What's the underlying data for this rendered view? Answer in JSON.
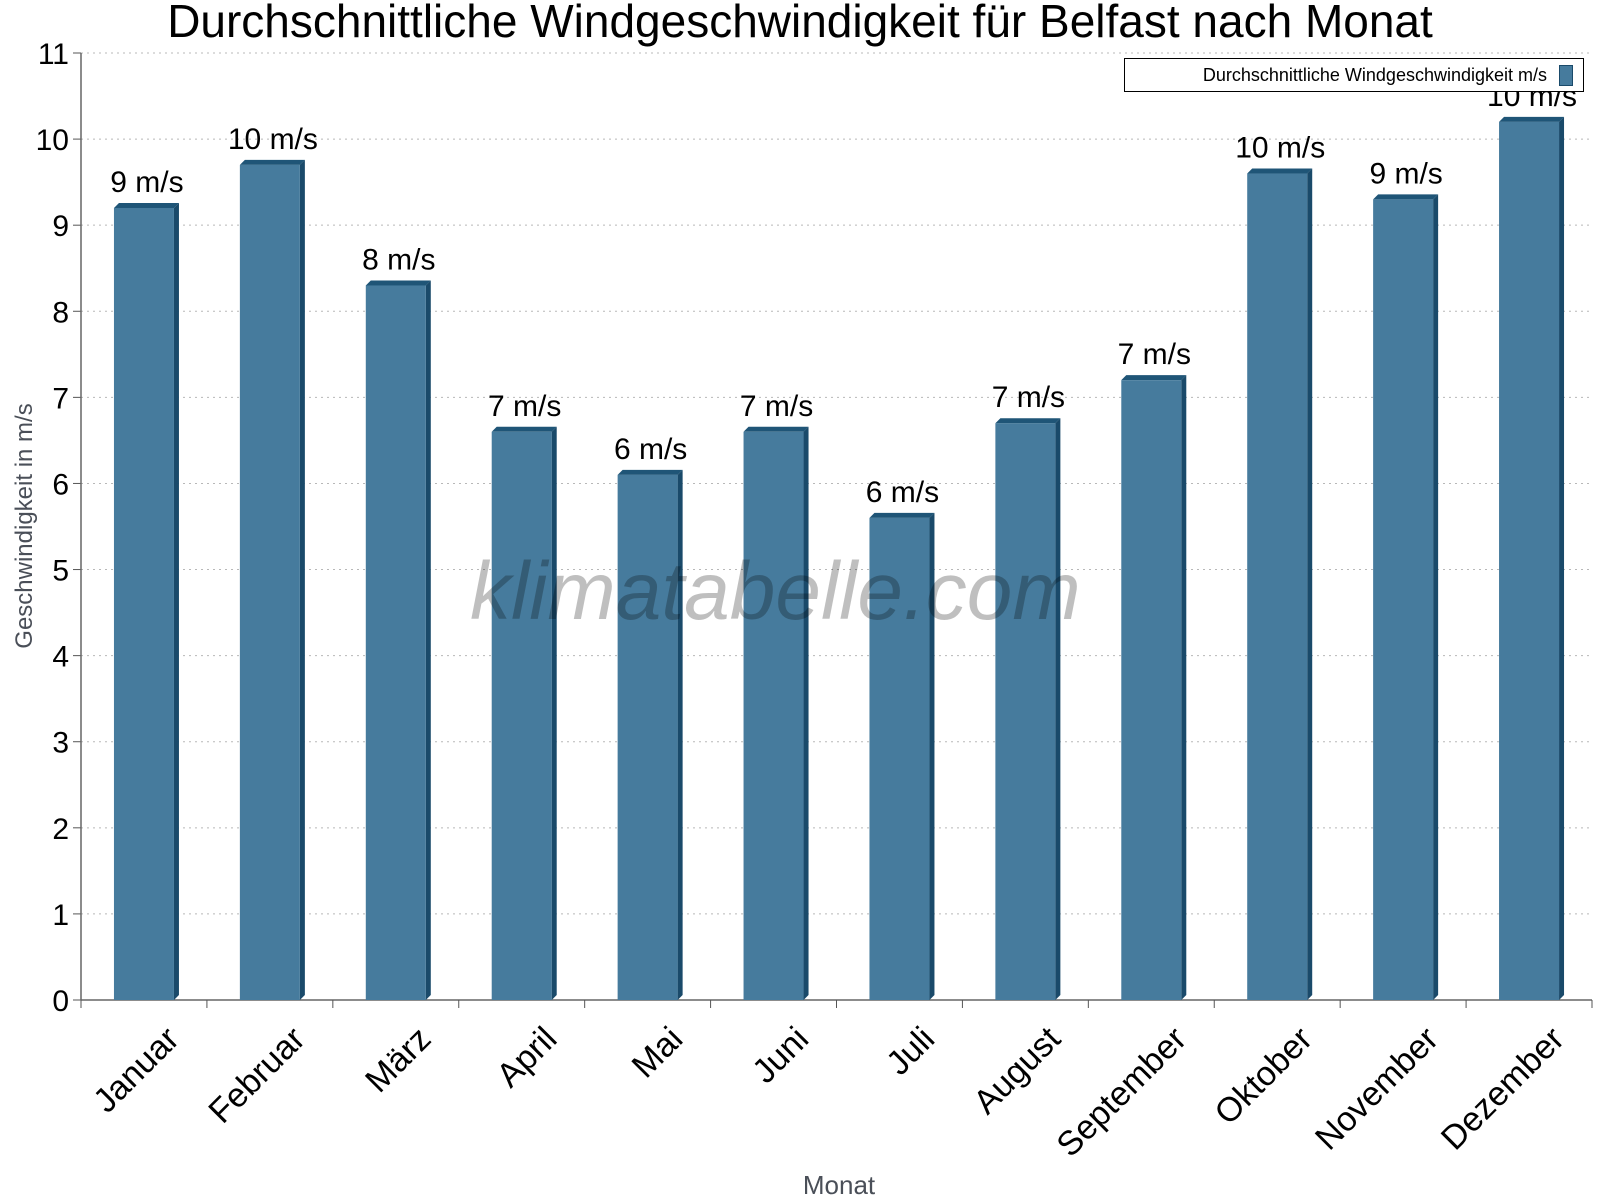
{
  "chart_data": {
    "type": "bar",
    "title": "Durchschnittliche Windgeschwindigkeit für Belfast nach Monat",
    "xlabel": "Monat",
    "ylabel": "Geschwindigkeit in m/s",
    "watermark": "klimatabelle.com",
    "ylim": [
      0,
      11
    ],
    "yticks": [
      "0",
      "1",
      "2",
      "3",
      "4",
      "5",
      "6",
      "7",
      "8",
      "9",
      "10",
      "11"
    ],
    "grid": true,
    "legend_position": "top-right",
    "categories": [
      "Januar",
      "Februar",
      "März",
      "April",
      "Mai",
      "Juni",
      "Juli",
      "August",
      "September",
      "Oktober",
      "November",
      "Dezember"
    ],
    "series": [
      {
        "name": "Durchschnittliche Windgeschwindigkeit m/s",
        "values": [
          9.2,
          9.7,
          8.3,
          6.6,
          6.1,
          6.6,
          5.6,
          6.7,
          7.2,
          9.6,
          9.3,
          10.2
        ],
        "labels": [
          "9 m/s",
          "10 m/s",
          "8 m/s",
          "7 m/s",
          "6 m/s",
          "7 m/s",
          "6 m/s",
          "7 m/s",
          "7 m/s",
          "10 m/s",
          "9 m/s",
          "10 m/s"
        ]
      }
    ],
    "colors": {
      "bar": "#467b9d",
      "bar_side": "#1a4a6a",
      "bar_top": "#1f5577"
    }
  }
}
